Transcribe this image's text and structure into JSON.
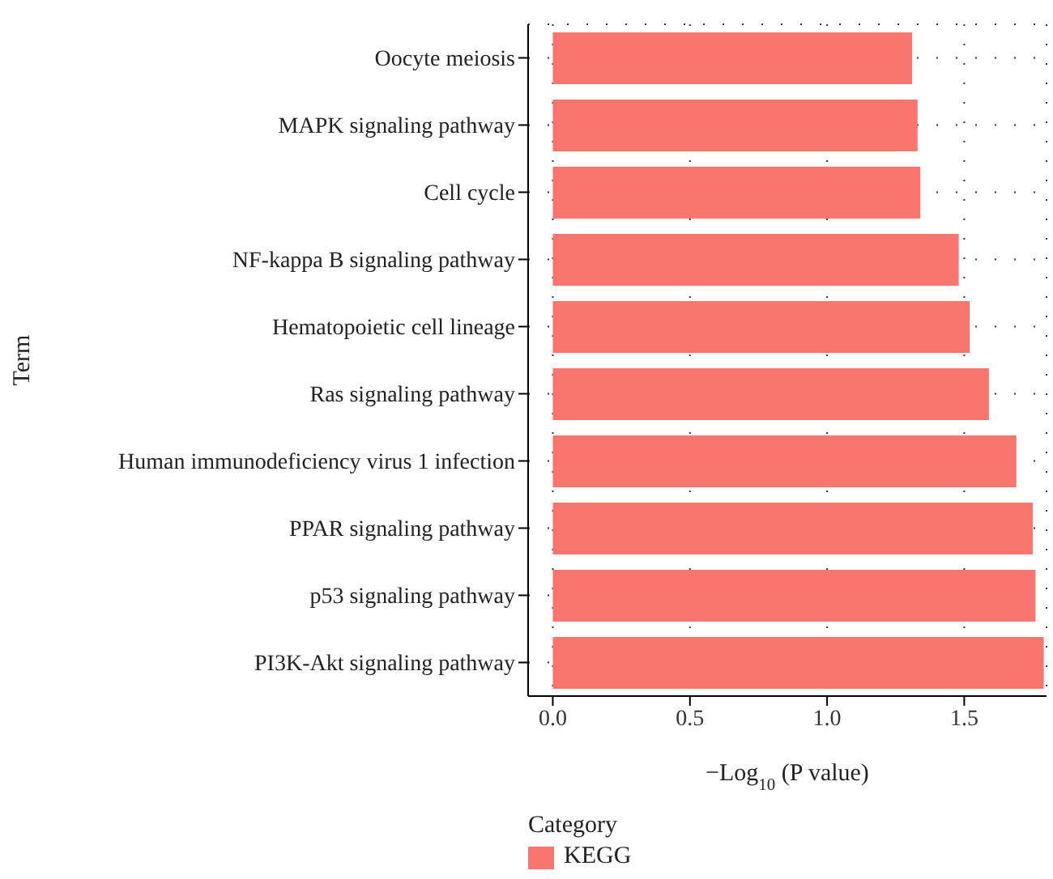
{
  "chart_data": {
    "type": "bar",
    "orientation": "horizontal",
    "xlabel": "−Log$_{10}$ (P value)",
    "ylabel": "Term",
    "legend_title": "Category",
    "legend": "bottom",
    "grid": true,
    "categories": [
      "Oocyte meiosis",
      "MAPK signaling pathway",
      "Cell cycle",
      "NF-kappa B signaling pathway",
      "Hematopoietic cell lineage",
      "Ras signaling pathway",
      "Human immunodeficiency virus 1 infection",
      "PPAR signaling pathway",
      "p53 signaling pathway",
      "PI3K-Akt signaling pathway"
    ],
    "series": [
      {
        "name": "KEGG",
        "color": "#f8766d",
        "values": [
          1.31,
          1.33,
          1.34,
          1.48,
          1.52,
          1.59,
          1.69,
          1.75,
          1.76,
          1.79
        ]
      }
    ],
    "xlim": [
      -0.09,
      1.8
    ],
    "xticks": [
      {
        "value": 0,
        "label": "0.0"
      },
      {
        "value": 0.5,
        "label": "0.5"
      },
      {
        "value": 1,
        "label": "1.0"
      },
      {
        "value": 1.5,
        "label": "1.5"
      }
    ]
  }
}
